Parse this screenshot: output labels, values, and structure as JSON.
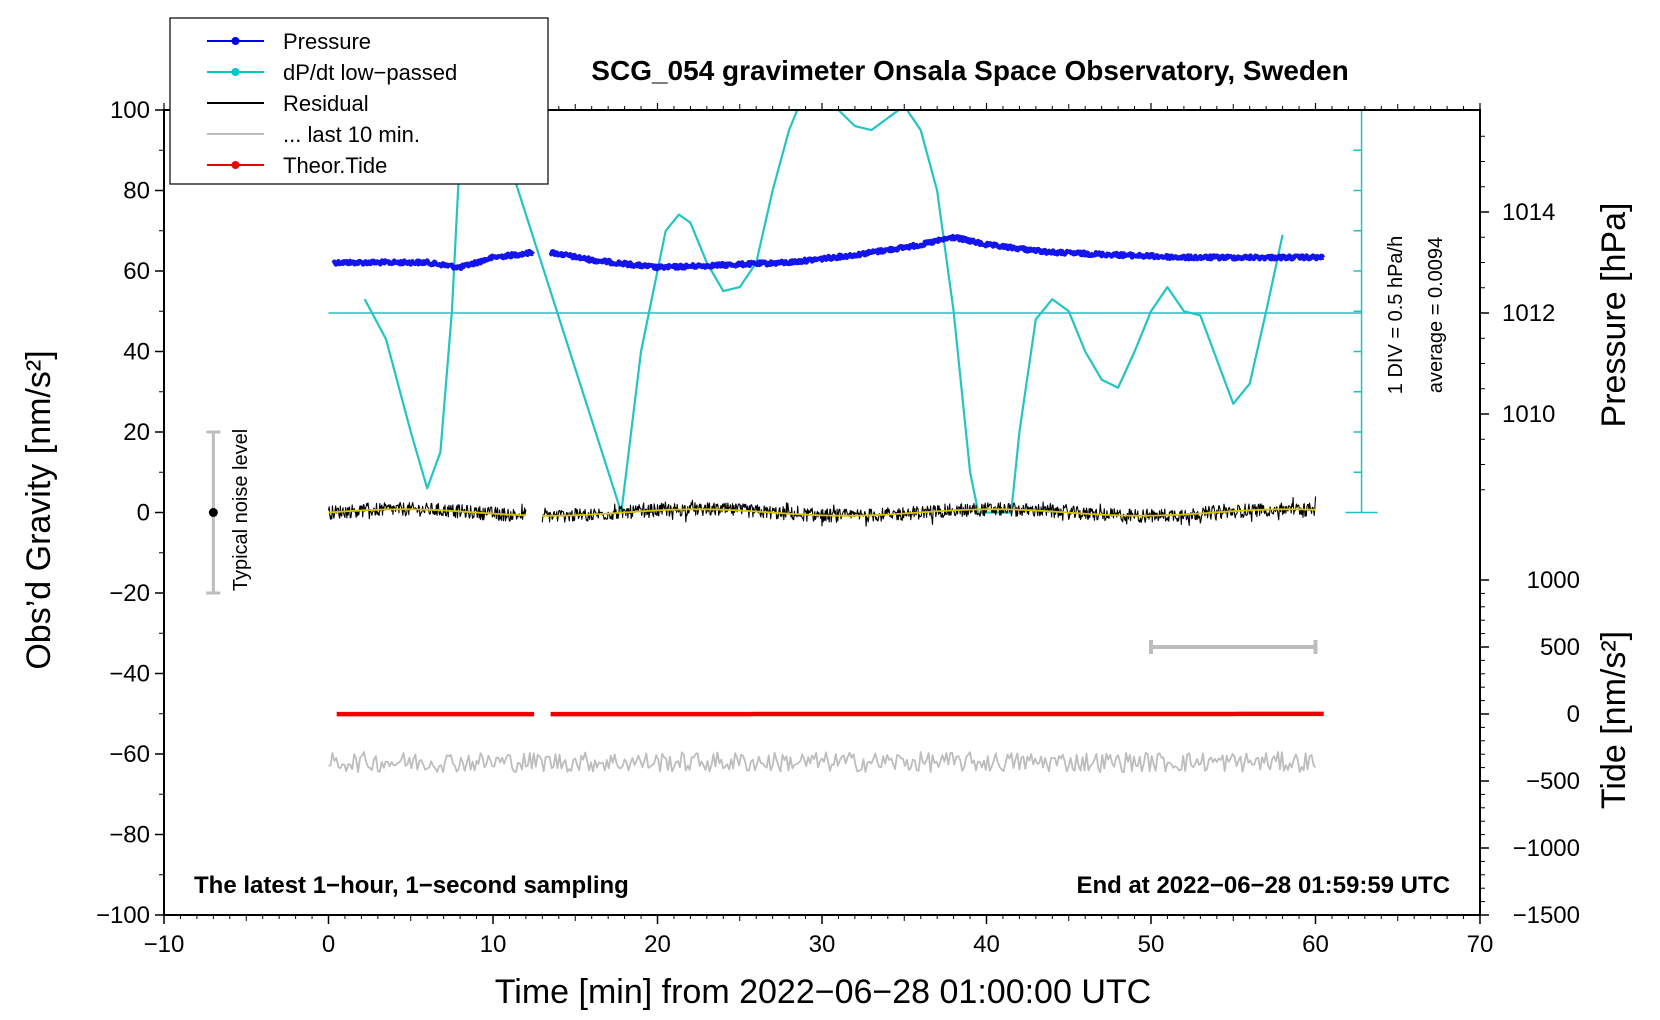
{
  "chart_data": {
    "type": "line",
    "title": "SCG_054 gravimeter Onsala Space Observatory, Sweden",
    "xlabel": "Time [min] from 2022−06−28 01:00:00 UTC",
    "ylabel_left": "Obs’d Gravity [nm/s²]",
    "ylabel_pressure": "Pressure [hPa]",
    "ylabel_tide": "Tide [nm/s²]",
    "xlim": [
      -10,
      70
    ],
    "ylim": [
      -100,
      100
    ],
    "x_ticks": [
      "−10",
      "0",
      "10",
      "20",
      "30",
      "40",
      "50",
      "60",
      "70"
    ],
    "y_ticks": [
      "100",
      "80",
      "60",
      "40",
      "20",
      "0",
      "−20",
      "−40",
      "−60",
      "−80",
      "−100"
    ],
    "pressure_axis": {
      "ticks": [
        "1014",
        "1012",
        "1010"
      ],
      "values": [
        1014,
        1012,
        1010
      ],
      "ref_level": 1012
    },
    "tide_axis": {
      "ticks": [
        "1000",
        "500",
        "0",
        "−500",
        "−1000",
        "−1500"
      ],
      "values": [
        1000,
        500,
        0,
        -500,
        -1000,
        -1500
      ]
    },
    "legend": [
      {
        "label": "Pressure",
        "color": "#0000ee",
        "marker": true
      },
      {
        "label": "dP/dt low−passed",
        "color": "#00c8c8",
        "marker": true
      },
      {
        "label": "Residual",
        "color": "#000000",
        "marker": false
      },
      {
        "label": "... last 10 min.",
        "color": "#bdbdbd",
        "marker": false
      },
      {
        "label": "Theor.Tide",
        "color": "#ee0000",
        "marker": true
      }
    ],
    "noise_label": "Typical noise level",
    "noise_bar": {
      "x": -7,
      "center": 0,
      "low": -20,
      "high": 20
    },
    "dpdt_scale_label": "1 DIV = 0.5 hPa/h",
    "dpdt_average_label": "average = 0.0094",
    "note_left": "The latest 1−hour, 1−second sampling",
    "note_right": "End at 2022−06−28 01:59:59 UTC",
    "last10_span": [
      50,
      60
    ],
    "series": [
      {
        "name": "Pressure",
        "unit": "hPa",
        "x": [
          0,
          3,
          6,
          8,
          10,
          12.5,
          13.5,
          16,
          20,
          24,
          28,
          32,
          36,
          38,
          40,
          44,
          48,
          52,
          56,
          60
        ],
        "values": [
          1013.0,
          1013.0,
          1013.0,
          1012.9,
          1013.1,
          1013.2,
          1013.2,
          1013.05,
          1012.9,
          1012.95,
          1013.0,
          1013.15,
          1013.35,
          1013.5,
          1013.35,
          1013.2,
          1013.15,
          1013.1,
          1013.1,
          1013.1
        ]
      },
      {
        "name": "dP/dt low−passed",
        "x": [
          2.2,
          3.5,
          5,
          6,
          6.8,
          7.5,
          8,
          8.4,
          17.8,
          19,
          20.5,
          21.3,
          22,
          23,
          24,
          25,
          26,
          27,
          28,
          28.5,
          28.8,
          31,
          32,
          33,
          34,
          35,
          36,
          37,
          38,
          39,
          39.5,
          41.5,
          42,
          43,
          44,
          45,
          46,
          47,
          48,
          49,
          50,
          51,
          52,
          53,
          54,
          55,
          56,
          57,
          58
        ],
        "values": [
          53,
          43,
          20,
          6,
          15,
          50,
          90,
          120,
          0,
          40,
          70,
          74,
          72,
          62,
          55,
          56,
          62,
          80,
          95,
          100,
          110,
          100,
          96,
          95,
          98,
          101,
          95,
          80,
          50,
          10,
          0,
          0,
          20,
          48,
          53,
          50,
          40,
          33,
          31,
          40,
          50,
          56,
          50,
          49,
          38,
          27,
          32,
          50,
          69
        ]
      },
      {
        "name": "Residual",
        "segments": [
          [
            0,
            12
          ],
          [
            13,
            60
          ]
        ],
        "level": 0,
        "amplitude": 1.7
      },
      {
        "name": "... last 10 min.",
        "segments": [
          [
            0,
            60
          ]
        ],
        "level": -62,
        "amplitude": 2.5
      },
      {
        "name": "Theor.Tide",
        "unit": "nm/s²",
        "segments": [
          [
            0.5,
            12.5
          ],
          [
            13.5,
            60.5
          ]
        ],
        "values_start": -1,
        "values_end": 0.5
      }
    ]
  }
}
